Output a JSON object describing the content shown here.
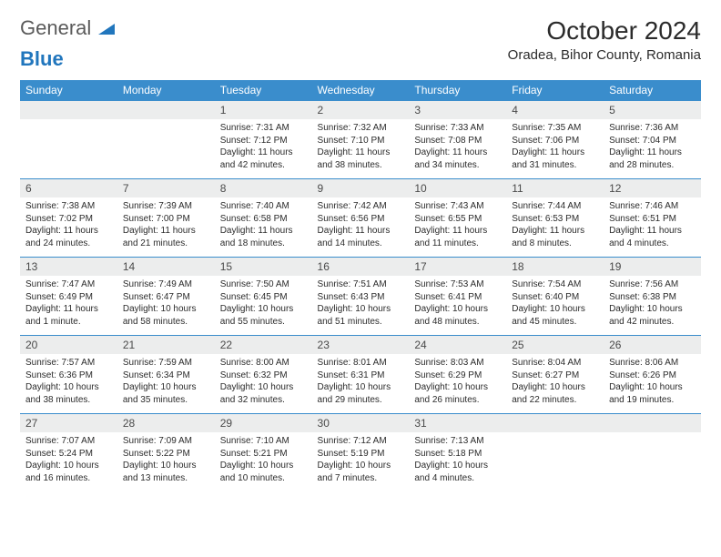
{
  "logo": {
    "general": "General",
    "blue": "Blue"
  },
  "title": "October 2024",
  "location": "Oradea, Bihor County, Romania",
  "colors": {
    "header_bg": "#3a8dcc",
    "header_fg": "#ffffff",
    "daynum_bg": "#eceded",
    "border": "#3a8dcc",
    "logo_gray": "#5a5a5a",
    "logo_blue": "#2176bd",
    "text": "#2b2b2b"
  },
  "typography": {
    "title_fontsize": 28,
    "location_fontsize": 15,
    "header_fontsize": 12,
    "daynum_fontsize": 12,
    "body_fontsize": 10
  },
  "weekdays": [
    "Sunday",
    "Monday",
    "Tuesday",
    "Wednesday",
    "Thursday",
    "Friday",
    "Saturday"
  ],
  "weeks": [
    [
      null,
      null,
      {
        "n": "1",
        "sr": "7:31 AM",
        "ss": "7:12 PM",
        "dl": "11 hours and 42 minutes."
      },
      {
        "n": "2",
        "sr": "7:32 AM",
        "ss": "7:10 PM",
        "dl": "11 hours and 38 minutes."
      },
      {
        "n": "3",
        "sr": "7:33 AM",
        "ss": "7:08 PM",
        "dl": "11 hours and 34 minutes."
      },
      {
        "n": "4",
        "sr": "7:35 AM",
        "ss": "7:06 PM",
        "dl": "11 hours and 31 minutes."
      },
      {
        "n": "5",
        "sr": "7:36 AM",
        "ss": "7:04 PM",
        "dl": "11 hours and 28 minutes."
      }
    ],
    [
      {
        "n": "6",
        "sr": "7:38 AM",
        "ss": "7:02 PM",
        "dl": "11 hours and 24 minutes."
      },
      {
        "n": "7",
        "sr": "7:39 AM",
        "ss": "7:00 PM",
        "dl": "11 hours and 21 minutes."
      },
      {
        "n": "8",
        "sr": "7:40 AM",
        "ss": "6:58 PM",
        "dl": "11 hours and 18 minutes."
      },
      {
        "n": "9",
        "sr": "7:42 AM",
        "ss": "6:56 PM",
        "dl": "11 hours and 14 minutes."
      },
      {
        "n": "10",
        "sr": "7:43 AM",
        "ss": "6:55 PM",
        "dl": "11 hours and 11 minutes."
      },
      {
        "n": "11",
        "sr": "7:44 AM",
        "ss": "6:53 PM",
        "dl": "11 hours and 8 minutes."
      },
      {
        "n": "12",
        "sr": "7:46 AM",
        "ss": "6:51 PM",
        "dl": "11 hours and 4 minutes."
      }
    ],
    [
      {
        "n": "13",
        "sr": "7:47 AM",
        "ss": "6:49 PM",
        "dl": "11 hours and 1 minute."
      },
      {
        "n": "14",
        "sr": "7:49 AM",
        "ss": "6:47 PM",
        "dl": "10 hours and 58 minutes."
      },
      {
        "n": "15",
        "sr": "7:50 AM",
        "ss": "6:45 PM",
        "dl": "10 hours and 55 minutes."
      },
      {
        "n": "16",
        "sr": "7:51 AM",
        "ss": "6:43 PM",
        "dl": "10 hours and 51 minutes."
      },
      {
        "n": "17",
        "sr": "7:53 AM",
        "ss": "6:41 PM",
        "dl": "10 hours and 48 minutes."
      },
      {
        "n": "18",
        "sr": "7:54 AM",
        "ss": "6:40 PM",
        "dl": "10 hours and 45 minutes."
      },
      {
        "n": "19",
        "sr": "7:56 AM",
        "ss": "6:38 PM",
        "dl": "10 hours and 42 minutes."
      }
    ],
    [
      {
        "n": "20",
        "sr": "7:57 AM",
        "ss": "6:36 PM",
        "dl": "10 hours and 38 minutes."
      },
      {
        "n": "21",
        "sr": "7:59 AM",
        "ss": "6:34 PM",
        "dl": "10 hours and 35 minutes."
      },
      {
        "n": "22",
        "sr": "8:00 AM",
        "ss": "6:32 PM",
        "dl": "10 hours and 32 minutes."
      },
      {
        "n": "23",
        "sr": "8:01 AM",
        "ss": "6:31 PM",
        "dl": "10 hours and 29 minutes."
      },
      {
        "n": "24",
        "sr": "8:03 AM",
        "ss": "6:29 PM",
        "dl": "10 hours and 26 minutes."
      },
      {
        "n": "25",
        "sr": "8:04 AM",
        "ss": "6:27 PM",
        "dl": "10 hours and 22 minutes."
      },
      {
        "n": "26",
        "sr": "8:06 AM",
        "ss": "6:26 PM",
        "dl": "10 hours and 19 minutes."
      }
    ],
    [
      {
        "n": "27",
        "sr": "7:07 AM",
        "ss": "5:24 PM",
        "dl": "10 hours and 16 minutes."
      },
      {
        "n": "28",
        "sr": "7:09 AM",
        "ss": "5:22 PM",
        "dl": "10 hours and 13 minutes."
      },
      {
        "n": "29",
        "sr": "7:10 AM",
        "ss": "5:21 PM",
        "dl": "10 hours and 10 minutes."
      },
      {
        "n": "30",
        "sr": "7:12 AM",
        "ss": "5:19 PM",
        "dl": "10 hours and 7 minutes."
      },
      {
        "n": "31",
        "sr": "7:13 AM",
        "ss": "5:18 PM",
        "dl": "10 hours and 4 minutes."
      },
      null,
      null
    ]
  ]
}
